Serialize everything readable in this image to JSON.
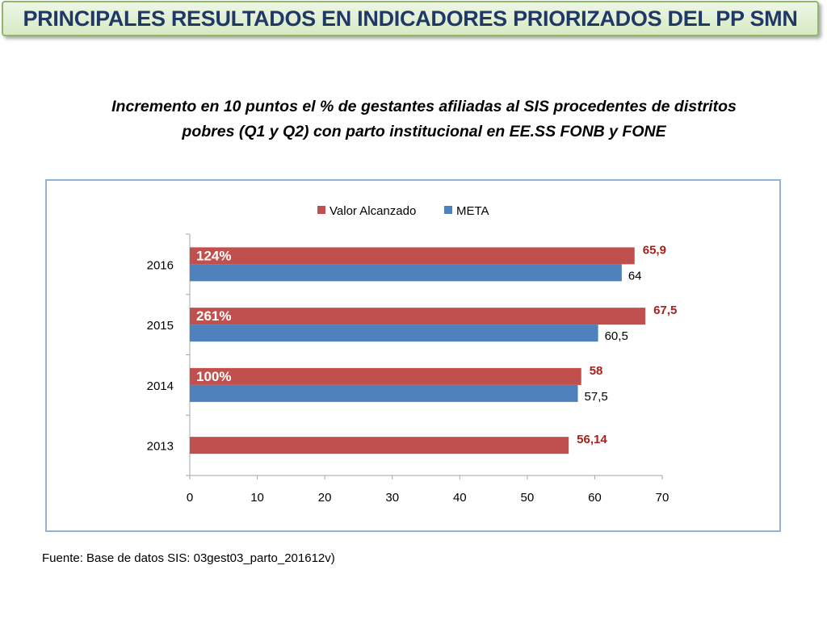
{
  "header": {
    "title": "PRINCIPALES RESULTADOS EN INDICADORES PRIORIZADOS DEL PP SMN"
  },
  "subtitle": {
    "line1": "Incremento en 10 puntos el % de gestantes afiliadas al SIS procedentes de distritos",
    "line2": "pobres (Q1 y Q2) con parto institucional en EE.SS FONB y FONE"
  },
  "colors": {
    "valor": "#c0504d",
    "meta": "#4f81bd",
    "valor_label": "#a8201a",
    "axis": "#a6a6a6",
    "text": "#000000"
  },
  "chart_data": {
    "type": "bar",
    "orientation": "horizontal",
    "categories": [
      "2016",
      "2015",
      "2014",
      "2013"
    ],
    "series": [
      {
        "name": "Valor Alcanzado",
        "values": [
          65.9,
          67.5,
          58,
          56.14
        ],
        "labels": [
          "65,9",
          "67,5",
          "58",
          "56,14"
        ]
      },
      {
        "name": "META",
        "values": [
          64,
          60.5,
          57.5,
          null
        ],
        "labels": [
          "64",
          "60,5",
          "57,5",
          ""
        ]
      }
    ],
    "annotations": [
      "124%",
      "261%",
      "100%",
      ""
    ],
    "xlim": [
      0,
      70
    ],
    "xticks": [
      "0",
      "10",
      "20",
      "30",
      "40",
      "50",
      "60",
      "70"
    ],
    "legend": "top",
    "grid": false
  },
  "footer": {
    "source": "Fuente:  Base de datos SIS:  03gest03_parto_201612v)"
  }
}
